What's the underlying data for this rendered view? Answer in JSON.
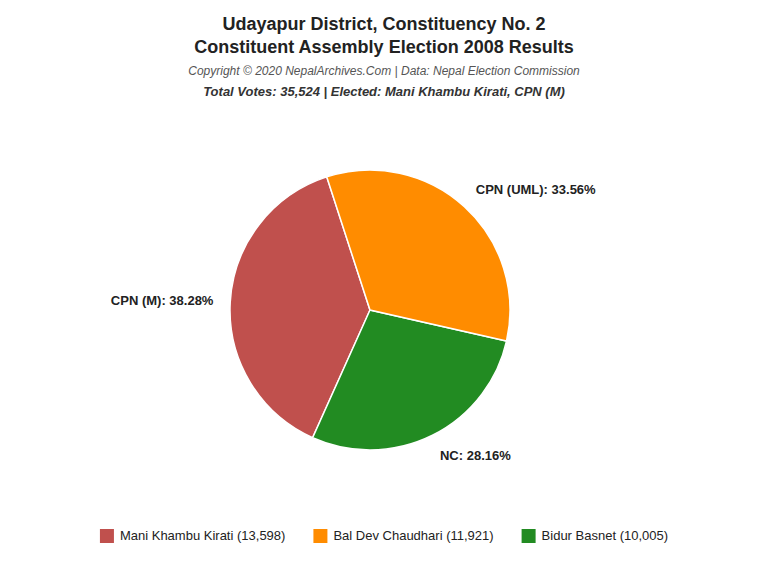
{
  "chart_data": {
    "type": "pie",
    "title": "Udayapur District, Constituency No. 2\nConstituent Assembly Election 2008 Results",
    "annotations": [
      "Copyright © 2020 NepalArchives.Com | Data: Nepal Election Commission"
    ],
    "subtitle": "Total Votes: 35,524 | Elected: Mani Khambu Kirati, CPN (M)",
    "values": [
      38.28,
      28.16,
      33.56
    ],
    "value_labels": [
      "CPN (M): 38.28%",
      "NC: 28.16%",
      "CPN (UML): 33.56%"
    ],
    "colors": [
      "#C0504D",
      "#228B22",
      "#FF8C00"
    ],
    "data_labels": true,
    "legend_entries": [
      {
        "label": "Mani Khambu Kirati (13,598)",
        "color": "#C0504D"
      },
      {
        "label": "Bal Dev Chaudhari (11,921)",
        "color": "#FF8C00"
      },
      {
        "label": "Bidur Basnet (10,005)",
        "color": "#228B22"
      }
    ]
  }
}
